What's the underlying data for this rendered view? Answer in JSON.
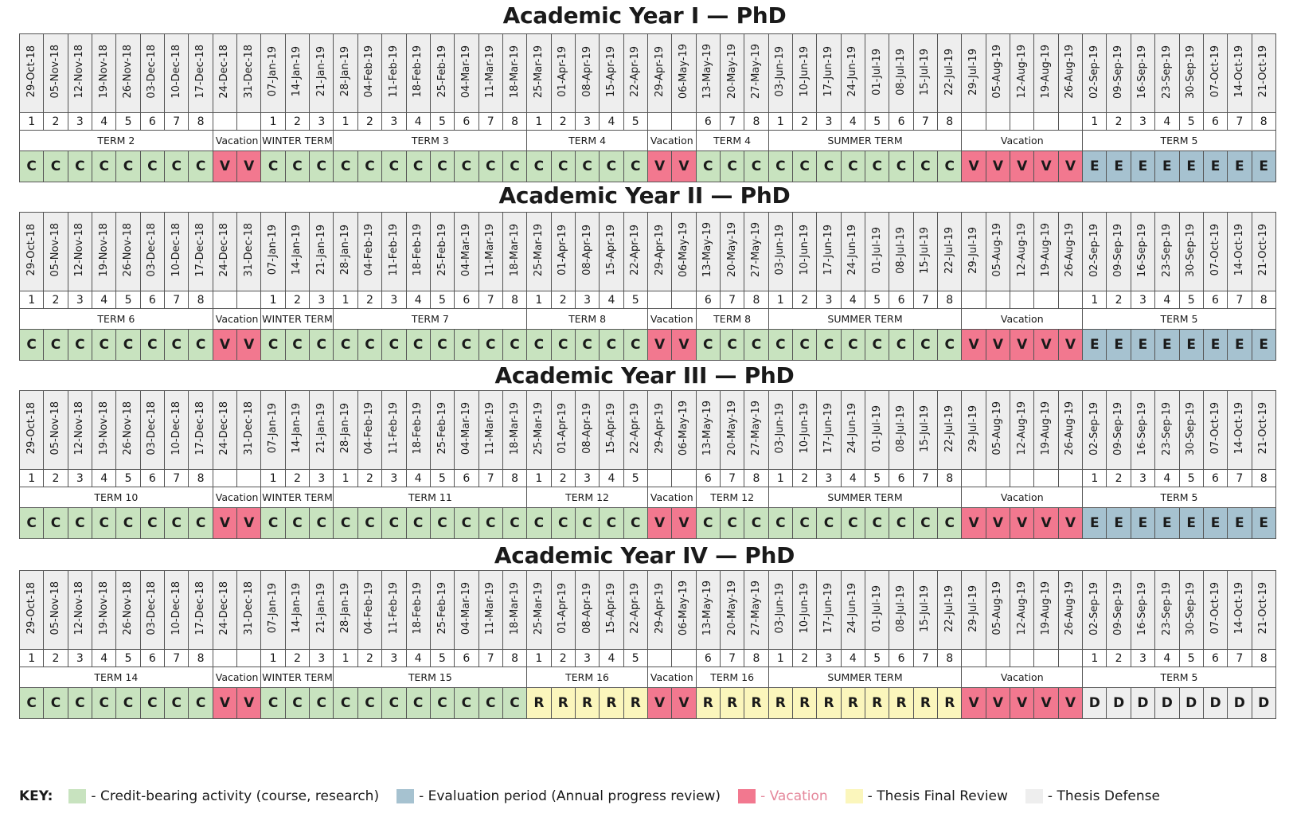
{
  "colors": {
    "C": "#c8e3bf",
    "V": "#f2788f",
    "E": "#a6c2d0",
    "R": "#fbf6bc",
    "D": "#eeeeee",
    "vacation_text": "#e5879b"
  },
  "dates": [
    "29-Oct-18",
    "05-Nov-18",
    "12-Nov-18",
    "19-Nov-18",
    "26-Nov-18",
    "03-Dec-18",
    "10-Dec-18",
    "17-Dec-18",
    "24-Dec-18",
    "31-Dec-18",
    "07-Jan-19",
    "14-Jan-19",
    "21-Jan-19",
    "28-Jan-19",
    "04-Feb-19",
    "11-Feb-19",
    "18-Feb-19",
    "25-Feb-19",
    "04-Mar-19",
    "11-Mar-19",
    "18-Mar-19",
    "25-Mar-19",
    "01-Apr-19",
    "08-Apr-19",
    "15-Apr-19",
    "22-Apr-19",
    "29-Apr-19",
    "06-May-19",
    "13-May-19",
    "20-May-19",
    "27-May-19",
    "03-Jun-19",
    "10-Jun-19",
    "17-Jun-19",
    "24-Jun-19",
    "01-Jul-19",
    "08-Jul-19",
    "15-Jul-19",
    "22-Jul-19",
    "29-Jul-19",
    "05-Aug-19",
    "12-Aug-19",
    "19-Aug-19",
    "26-Aug-19",
    "02-Sep-19",
    "09-Sep-19",
    "16-Sep-19",
    "23-Sep-19",
    "30-Sep-19",
    "07-Oct-19",
    "14-Oct-19",
    "21-Oct-19"
  ],
  "weeks": [
    "1",
    "2",
    "3",
    "4",
    "5",
    "6",
    "7",
    "8",
    "",
    "",
    "1",
    "2",
    "3",
    "1",
    "2",
    "3",
    "4",
    "5",
    "6",
    "7",
    "8",
    "1",
    "2",
    "3",
    "4",
    "5",
    "",
    "",
    "6",
    "7",
    "8",
    "1",
    "2",
    "3",
    "4",
    "5",
    "6",
    "7",
    "8",
    "",
    "",
    "",
    "",
    "",
    "1",
    "2",
    "3",
    "4",
    "5",
    "6",
    "7",
    "8"
  ],
  "years": [
    {
      "title": "Academic Year I — PhD",
      "terms": [
        {
          "label": "TERM 2",
          "span": 8
        },
        {
          "label": "Vacation",
          "span": 2
        },
        {
          "label": "WINTER TERM",
          "span": 3
        },
        {
          "label": "TERM 3",
          "span": 8
        },
        {
          "label": "TERM 4",
          "span": 5
        },
        {
          "label": "Vacation",
          "span": 2
        },
        {
          "label": "TERM 4",
          "span": 3
        },
        {
          "label": "SUMMER TERM",
          "span": 8
        },
        {
          "label": "Vacation",
          "span": 5
        },
        {
          "label": "TERM 5",
          "span": 8
        }
      ],
      "codes": [
        "C",
        "C",
        "C",
        "C",
        "C",
        "C",
        "C",
        "C",
        "V",
        "V",
        "C",
        "C",
        "C",
        "C",
        "C",
        "C",
        "C",
        "C",
        "C",
        "C",
        "C",
        "C",
        "C",
        "C",
        "C",
        "C",
        "V",
        "V",
        "C",
        "C",
        "C",
        "C",
        "C",
        "C",
        "C",
        "C",
        "C",
        "C",
        "C",
        "V",
        "V",
        "V",
        "V",
        "V",
        "E",
        "E",
        "E",
        "E",
        "E",
        "E",
        "E",
        "E"
      ]
    },
    {
      "title": "Academic Year II — PhD",
      "terms": [
        {
          "label": "TERM 6",
          "span": 8
        },
        {
          "label": "Vacation",
          "span": 2
        },
        {
          "label": "WINTER TERM",
          "span": 3
        },
        {
          "label": "TERM 7",
          "span": 8
        },
        {
          "label": "TERM 8",
          "span": 5
        },
        {
          "label": "Vacation",
          "span": 2
        },
        {
          "label": "TERM 8",
          "span": 3
        },
        {
          "label": "SUMMER TERM",
          "span": 8
        },
        {
          "label": "Vacation",
          "span": 5
        },
        {
          "label": "TERM 5",
          "span": 8
        }
      ],
      "codes": [
        "C",
        "C",
        "C",
        "C",
        "C",
        "C",
        "C",
        "C",
        "V",
        "V",
        "C",
        "C",
        "C",
        "C",
        "C",
        "C",
        "C",
        "C",
        "C",
        "C",
        "C",
        "C",
        "C",
        "C",
        "C",
        "C",
        "V",
        "V",
        "C",
        "C",
        "C",
        "C",
        "C",
        "C",
        "C",
        "C",
        "C",
        "C",
        "C",
        "V",
        "V",
        "V",
        "V",
        "V",
        "E",
        "E",
        "E",
        "E",
        "E",
        "E",
        "E",
        "E"
      ]
    },
    {
      "title": "Academic Year III — PhD",
      "terms": [
        {
          "label": "TERM 10",
          "span": 8
        },
        {
          "label": "Vacation",
          "span": 2
        },
        {
          "label": "WINTER TERM",
          "span": 3
        },
        {
          "label": "TERM 11",
          "span": 8
        },
        {
          "label": "TERM 12",
          "span": 5
        },
        {
          "label": "Vacation",
          "span": 2
        },
        {
          "label": "TERM 12",
          "span": 3
        },
        {
          "label": "SUMMER TERM",
          "span": 8
        },
        {
          "label": "Vacation",
          "span": 5
        },
        {
          "label": "TERM 5",
          "span": 8
        }
      ],
      "codes": [
        "C",
        "C",
        "C",
        "C",
        "C",
        "C",
        "C",
        "C",
        "V",
        "V",
        "C",
        "C",
        "C",
        "C",
        "C",
        "C",
        "C",
        "C",
        "C",
        "C",
        "C",
        "C",
        "C",
        "C",
        "C",
        "C",
        "V",
        "V",
        "C",
        "C",
        "C",
        "C",
        "C",
        "C",
        "C",
        "C",
        "C",
        "C",
        "C",
        "V",
        "V",
        "V",
        "V",
        "V",
        "E",
        "E",
        "E",
        "E",
        "E",
        "E",
        "E",
        "E"
      ]
    },
    {
      "title": "Academic Year IV — PhD",
      "terms": [
        {
          "label": "TERM 14",
          "span": 8
        },
        {
          "label": "Vacation",
          "span": 2
        },
        {
          "label": "WINTER TERM",
          "span": 3
        },
        {
          "label": "TERM 15",
          "span": 8
        },
        {
          "label": "TERM 16",
          "span": 5
        },
        {
          "label": "Vacation",
          "span": 2
        },
        {
          "label": "TERM 16",
          "span": 3
        },
        {
          "label": "SUMMER TERM",
          "span": 8
        },
        {
          "label": "Vacation",
          "span": 5
        },
        {
          "label": "TERM 5",
          "span": 8
        }
      ],
      "codes": [
        "C",
        "C",
        "C",
        "C",
        "C",
        "C",
        "C",
        "C",
        "V",
        "V",
        "C",
        "C",
        "C",
        "C",
        "C",
        "C",
        "C",
        "C",
        "C",
        "C",
        "C",
        "R",
        "R",
        "R",
        "R",
        "R",
        "V",
        "V",
        "R",
        "R",
        "R",
        "R",
        "R",
        "R",
        "R",
        "R",
        "R",
        "R",
        "R",
        "V",
        "V",
        "V",
        "V",
        "V",
        "D",
        "D",
        "D",
        "D",
        "D",
        "D",
        "D",
        "D"
      ]
    }
  ],
  "key": {
    "label": "KEY:",
    "items": [
      {
        "code": "C",
        "text": "- Credit-bearing activity (course, research)"
      },
      {
        "code": "E",
        "text": "- Evaluation period (Annual progress review)"
      },
      {
        "code": "V",
        "text": "- Vacation"
      },
      {
        "code": "R",
        "text": "- Thesis Final Review"
      },
      {
        "code": "D",
        "text": "-  Thesis Defense"
      }
    ]
  }
}
